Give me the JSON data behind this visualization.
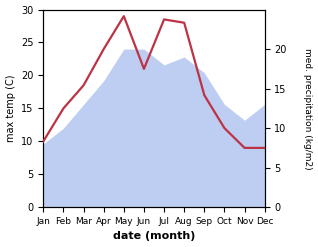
{
  "months": [
    "Jan",
    "Feb",
    "Mar",
    "Apr",
    "May",
    "Jun",
    "Jul",
    "Aug",
    "Sep",
    "Oct",
    "Nov",
    "Dec"
  ],
  "x": [
    0,
    1,
    2,
    3,
    4,
    5,
    6,
    7,
    8,
    9,
    10,
    11
  ],
  "temperature": [
    10,
    15,
    18.5,
    24,
    29,
    21,
    28.5,
    28,
    17,
    12,
    9,
    9
  ],
  "precipitation": [
    8,
    10,
    13,
    16,
    20,
    20,
    18,
    19,
    17,
    13,
    11,
    13
  ],
  "temp_ylim": [
    0,
    30
  ],
  "temp_yticks": [
    0,
    5,
    10,
    15,
    20,
    25,
    30
  ],
  "precip_ylim": [
    0,
    25
  ],
  "precip_right_ticks": [
    0,
    5,
    10,
    15,
    20
  ],
  "temp_color": "#bb3344",
  "precip_fill_color": "#b3c6f0",
  "precip_fill_alpha": 0.85,
  "xlabel": "date (month)",
  "ylabel_left": "max temp (C)",
  "ylabel_right": "med. precipitation (kg/m2)",
  "bg_color": "#ffffff",
  "line_width": 1.6,
  "figsize": [
    3.18,
    2.47
  ],
  "dpi": 100
}
